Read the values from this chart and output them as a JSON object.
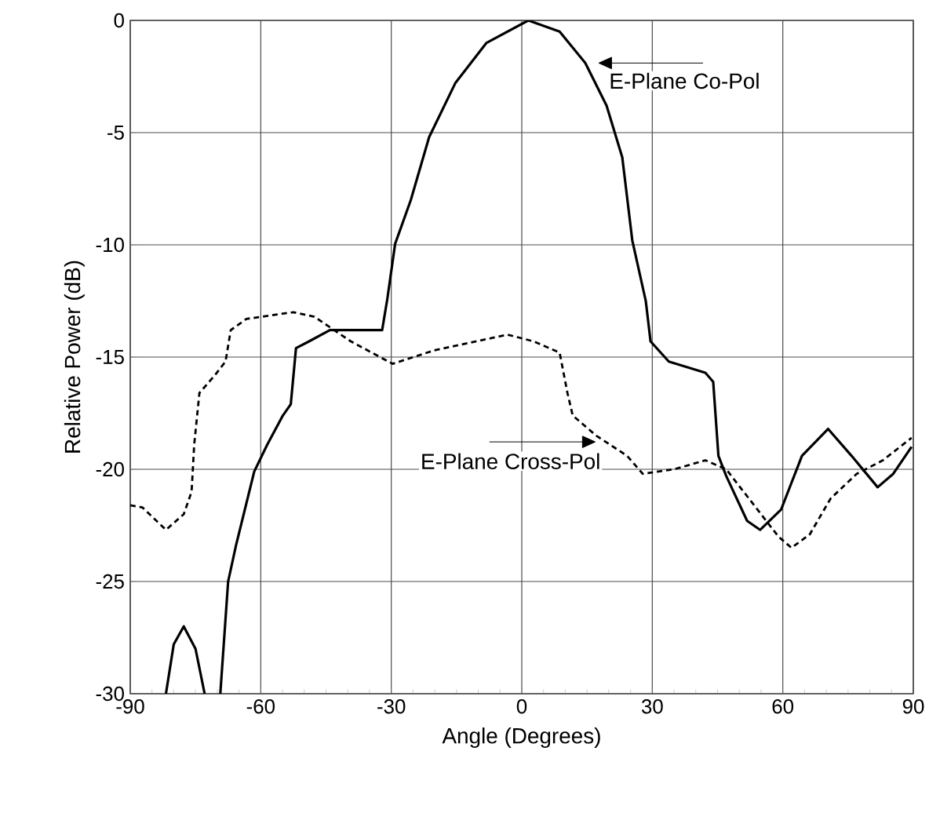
{
  "chart_data": {
    "type": "line",
    "xlabel": "Angle (Degrees)",
    "ylabel": "Relative Power (dB)",
    "xlim": [
      -90,
      90
    ],
    "ylim": [
      -30,
      0
    ],
    "xticks": [
      -90,
      -60,
      -30,
      0,
      30,
      60,
      90
    ],
    "yticks": [
      0,
      -5,
      -10,
      -15,
      -20,
      -25,
      -30
    ],
    "grid": true,
    "series": [
      {
        "color": "#000000",
        "line_style": "solid",
        "x": [
          -81.8,
          -80,
          -77.7,
          -75,
          -72.9,
          null,
          -69.3,
          -67.5,
          -65.7,
          -61.5,
          -58.5,
          -54.9,
          -53.1,
          -51.9,
          -48.9,
          -44.1,
          -32.1,
          -30.9,
          -29.1,
          -25.5,
          -21.3,
          -15.3,
          -8.1,
          1.5,
          8.7,
          14.6,
          19.5,
          23.1,
          25.4,
          28.5,
          29.6,
          33.8,
          42.2,
          44.0,
          45.2,
          47.0,
          51.8,
          54.8,
          59.6,
          64.4,
          70.4,
          75.8,
          81.8,
          85.4,
          89.6
        ],
        "values": [
          -30,
          -27.8,
          -27.0,
          -28.0,
          -30,
          null,
          -30,
          -25,
          -23.4,
          -20.1,
          -18.9,
          -17.6,
          -17.1,
          -14.6,
          -14.3,
          -13.8,
          -13.8,
          -12.4,
          -9.95,
          -8.0,
          -5.2,
          -2.8,
          -1.0,
          0,
          -0.5,
          -1.9,
          -3.8,
          -6.1,
          -9.8,
          -12.5,
          -14.3,
          -15.2,
          -15.7,
          -16.1,
          -19.4,
          -20.3,
          -22.3,
          -22.7,
          -21.8,
          -19.4,
          -18.2,
          -19.4,
          -20.8,
          -20.2,
          -19.0
        ]
      },
      {
        "color": "#000000",
        "line_style": "dashed",
        "x": [
          -90,
          -87.2,
          -81.8,
          -77.7,
          -75.9,
          -75.3,
          -74.1,
          -70.5,
          -68.1,
          -66.9,
          -63.3,
          -52.5,
          -47.7,
          -39.3,
          -29.7,
          -20.1,
          -3.3,
          2.7,
          8.7,
          10.5,
          11.7,
          17.1,
          24.2,
          27.8,
          35.0,
          42.2,
          47.0,
          53.0,
          59.0,
          62.0,
          66.2,
          71.0,
          77.0,
          83.0,
          89.6
        ],
        "values": [
          -21.6,
          -21.7,
          -22.7,
          -22.0,
          -21.0,
          -18.9,
          -16.6,
          -15.8,
          -15.2,
          -13.8,
          -13.3,
          -13.0,
          -13.2,
          -14.3,
          -15.3,
          -14.7,
          -14.0,
          -14.3,
          -14.8,
          -16.6,
          -17.6,
          -18.5,
          -19.4,
          -20.2,
          -20.0,
          -19.6,
          -20.0,
          -21.5,
          -23.0,
          -23.5,
          -22.9,
          -21.3,
          -20.2,
          -19.6,
          -18.6
        ]
      }
    ],
    "annotations": [
      {
        "text": "E-Plane Co-Pol",
        "x": 14.6,
        "y": -1.9
      },
      {
        "text": "E-Plane Cross-Pol",
        "x": 17.1,
        "y": -18.5
      }
    ]
  }
}
